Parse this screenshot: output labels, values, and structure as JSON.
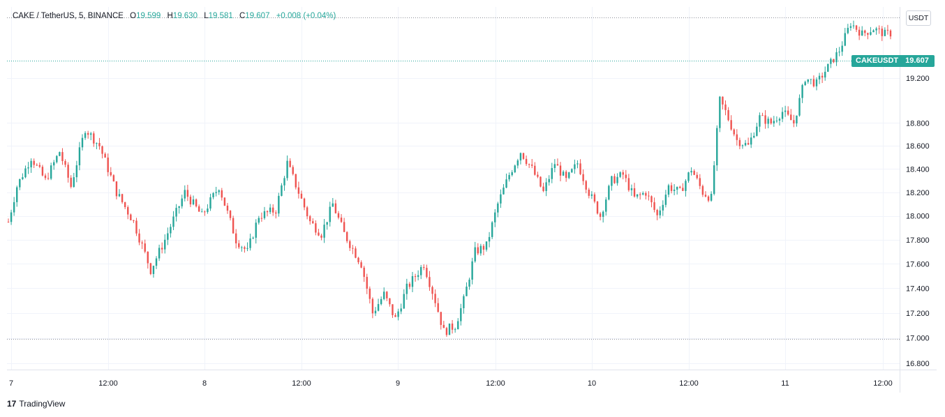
{
  "legend": {
    "symbol": "CAKE / TetherUS, 5, BINANCE",
    "open_label": "O",
    "open": "19.599",
    "high_label": "H",
    "high": "19.630",
    "low_label": "L",
    "low": "19.581",
    "close_label": "C",
    "close": "19.607",
    "change": "+0.008 (+0.04%)"
  },
  "currency": "USDT",
  "price_tag": {
    "symbol": "CAKEUSDT",
    "value": "19.607"
  },
  "brand": {
    "logo": "17",
    "name": "TradingView"
  },
  "colors": {
    "up": "#26a69a",
    "down": "#ef5350",
    "grid": "#f0f3fa",
    "axis": "#e0e3eb"
  },
  "chart_data": {
    "type": "candlestick",
    "interval": "5m",
    "x_tick_labels": [
      "7",
      "12:00",
      "8",
      "12:00",
      "9",
      "12:00",
      "10",
      "12:00",
      "11",
      "12:00"
    ],
    "y_tick_labels": [
      "16.800",
      "17.000",
      "17.200",
      "17.400",
      "17.600",
      "17.800",
      "18.000",
      "18.200",
      "18.400",
      "18.600",
      "18.800",
      "19.200"
    ],
    "y_ticks": [
      16.8,
      17.0,
      17.2,
      17.4,
      17.6,
      17.8,
      18.0,
      18.2,
      18.4,
      18.6,
      18.8,
      19.2
    ],
    "y_range": [
      16.75,
      19.85
    ],
    "scale": "log",
    "grid": true,
    "last_price": 19.607,
    "reference_lines": [
      19.75,
      16.99
    ],
    "close_path": [
      [
        0,
        17.95
      ],
      [
        3,
        18.25
      ],
      [
        8,
        18.5
      ],
      [
        13,
        18.3
      ],
      [
        18,
        18.55
      ],
      [
        22,
        18.25
      ],
      [
        27,
        18.75
      ],
      [
        32,
        18.6
      ],
      [
        38,
        18.2
      ],
      [
        44,
        17.95
      ],
      [
        50,
        17.55
      ],
      [
        55,
        17.8
      ],
      [
        62,
        18.2
      ],
      [
        68,
        18.0
      ],
      [
        74,
        18.25
      ],
      [
        80,
        17.8
      ],
      [
        84,
        17.7
      ],
      [
        88,
        18.0
      ],
      [
        94,
        18.05
      ],
      [
        98,
        18.45
      ],
      [
        102,
        18.2
      ],
      [
        106,
        17.95
      ],
      [
        110,
        17.85
      ],
      [
        114,
        18.1
      ],
      [
        118,
        17.85
      ],
      [
        124,
        17.6
      ],
      [
        128,
        17.2
      ],
      [
        132,
        17.35
      ],
      [
        136,
        17.15
      ],
      [
        140,
        17.4
      ],
      [
        146,
        17.6
      ],
      [
        150,
        17.3
      ],
      [
        153,
        17.05
      ],
      [
        157,
        17.1
      ],
      [
        160,
        17.3
      ],
      [
        164,
        17.7
      ],
      [
        168,
        17.75
      ],
      [
        172,
        18.1
      ],
      [
        176,
        18.35
      ],
      [
        180,
        18.55
      ],
      [
        184,
        18.4
      ],
      [
        188,
        18.2
      ],
      [
        192,
        18.45
      ],
      [
        196,
        18.3
      ],
      [
        200,
        18.45
      ],
      [
        204,
        18.2
      ],
      [
        208,
        18.0
      ],
      [
        212,
        18.3
      ],
      [
        216,
        18.35
      ],
      [
        220,
        18.15
      ],
      [
        224,
        18.2
      ],
      [
        228,
        18.0
      ],
      [
        232,
        18.25
      ],
      [
        236,
        18.2
      ],
      [
        240,
        18.4
      ],
      [
        244,
        18.2
      ],
      [
        247,
        18.15
      ],
      [
        250,
        19.0
      ],
      [
        252,
        18.9
      ],
      [
        256,
        18.65
      ],
      [
        260,
        18.6
      ],
      [
        264,
        18.85
      ],
      [
        268,
        18.8
      ],
      [
        272,
        18.9
      ],
      [
        276,
        18.8
      ],
      [
        280,
        19.2
      ],
      [
        284,
        19.15
      ],
      [
        288,
        19.3
      ],
      [
        292,
        19.45
      ],
      [
        296,
        19.7
      ],
      [
        300,
        19.6
      ],
      [
        304,
        19.65
      ],
      [
        308,
        19.6
      ],
      [
        310,
        19.607
      ]
    ]
  }
}
